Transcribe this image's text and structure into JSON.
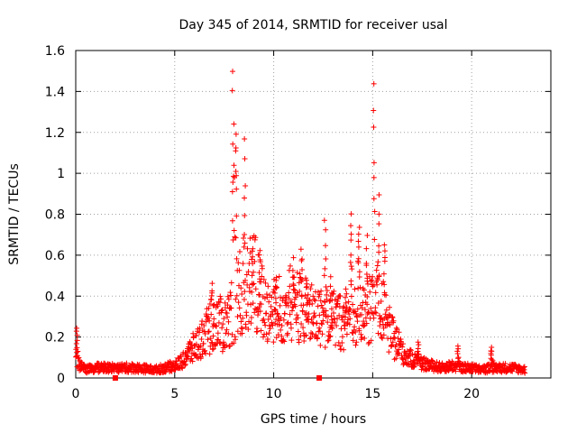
{
  "chart_data": {
    "type": "scatter",
    "title": "Day 345 of 2014, SRMTID for receiver usal",
    "xlabel": "GPS time / hours",
    "ylabel": "SRMTID / TECUs",
    "xlim": [
      0,
      24
    ],
    "ylim": [
      0,
      1.6
    ],
    "x_ticks": [
      {
        "value": 0,
        "label": "0"
      },
      {
        "value": 5,
        "label": "5"
      },
      {
        "value": 10,
        "label": "10"
      },
      {
        "value": 15,
        "label": "15"
      },
      {
        "value": 20,
        "label": "20"
      }
    ],
    "y_ticks": [
      {
        "value": 0,
        "label": "0"
      },
      {
        "value": 0.2,
        "label": "0.2"
      },
      {
        "value": 0.4,
        "label": "0.4"
      },
      {
        "value": 0.6,
        "label": "0.6"
      },
      {
        "value": 0.8,
        "label": "0.8"
      },
      {
        "value": 1.0,
        "label": "1"
      },
      {
        "value": 1.2,
        "label": "1.2"
      },
      {
        "value": 1.4,
        "label": "1.4"
      },
      {
        "value": 1.6,
        "label": "1.6"
      }
    ],
    "grid": true,
    "marker": "+",
    "color": "#ff0000",
    "envelope": {
      "description": "approximate typical level of the SRMTID series (TECU) vs GPS hour",
      "x": [
        0,
        0.2,
        0.5,
        1,
        2,
        3,
        4,
        4.5,
        5,
        5.5,
        6,
        6.5,
        7,
        7.5,
        8,
        8.5,
        9,
        9.5,
        10,
        10.5,
        11,
        11.5,
        12,
        12.5,
        13,
        13.5,
        14,
        14.5,
        15,
        15.5,
        16,
        16.5,
        17,
        17.5,
        18,
        18.5,
        19,
        19.5,
        20,
        20.5,
        21,
        21.5,
        22,
        22.7
      ],
      "y": [
        0.1,
        0.06,
        0.04,
        0.05,
        0.05,
        0.05,
        0.04,
        0.05,
        0.06,
        0.09,
        0.13,
        0.18,
        0.24,
        0.22,
        0.3,
        0.4,
        0.42,
        0.3,
        0.28,
        0.3,
        0.32,
        0.3,
        0.26,
        0.25,
        0.25,
        0.24,
        0.27,
        0.26,
        0.32,
        0.28,
        0.17,
        0.12,
        0.09,
        0.07,
        0.06,
        0.05,
        0.06,
        0.05,
        0.05,
        0.04,
        0.05,
        0.05,
        0.05,
        0.04
      ]
    },
    "spikes": [
      {
        "x": 0.05,
        "peak": 0.25,
        "width": 0.12
      },
      {
        "x": 6.9,
        "peak": 0.48,
        "width": 0.25
      },
      {
        "x": 7.95,
        "peak": 1.54,
        "width": 0.18
      },
      {
        "x": 8.1,
        "peak": 1.24,
        "width": 0.12
      },
      {
        "x": 8.55,
        "peak": 1.18,
        "width": 0.15
      },
      {
        "x": 8.95,
        "peak": 0.7,
        "width": 0.25
      },
      {
        "x": 9.3,
        "peak": 0.63,
        "width": 0.15
      },
      {
        "x": 10.1,
        "peak": 0.5,
        "width": 0.2
      },
      {
        "x": 11.0,
        "peak": 0.6,
        "width": 0.25
      },
      {
        "x": 11.4,
        "peak": 0.64,
        "width": 0.15
      },
      {
        "x": 11.7,
        "peak": 0.5,
        "width": 0.2
      },
      {
        "x": 12.6,
        "peak": 0.8,
        "width": 0.18
      },
      {
        "x": 12.9,
        "peak": 0.5,
        "width": 0.2
      },
      {
        "x": 13.6,
        "peak": 0.45,
        "width": 0.2
      },
      {
        "x": 13.9,
        "peak": 0.82,
        "width": 0.15
      },
      {
        "x": 14.3,
        "peak": 0.77,
        "width": 0.18
      },
      {
        "x": 14.7,
        "peak": 0.7,
        "width": 0.15
      },
      {
        "x": 15.05,
        "peak": 1.48,
        "width": 0.12
      },
      {
        "x": 15.3,
        "peak": 0.9,
        "width": 0.18
      },
      {
        "x": 15.6,
        "peak": 0.68,
        "width": 0.15
      },
      {
        "x": 17.3,
        "peak": 0.18,
        "width": 0.2
      },
      {
        "x": 19.3,
        "peak": 0.16,
        "width": 0.15
      },
      {
        "x": 21.0,
        "peak": 0.15,
        "width": 0.15
      }
    ],
    "gaps": [
      {
        "x": 2.0,
        "y": 0.0
      },
      {
        "x": 12.3,
        "y": 0.0
      }
    ]
  }
}
